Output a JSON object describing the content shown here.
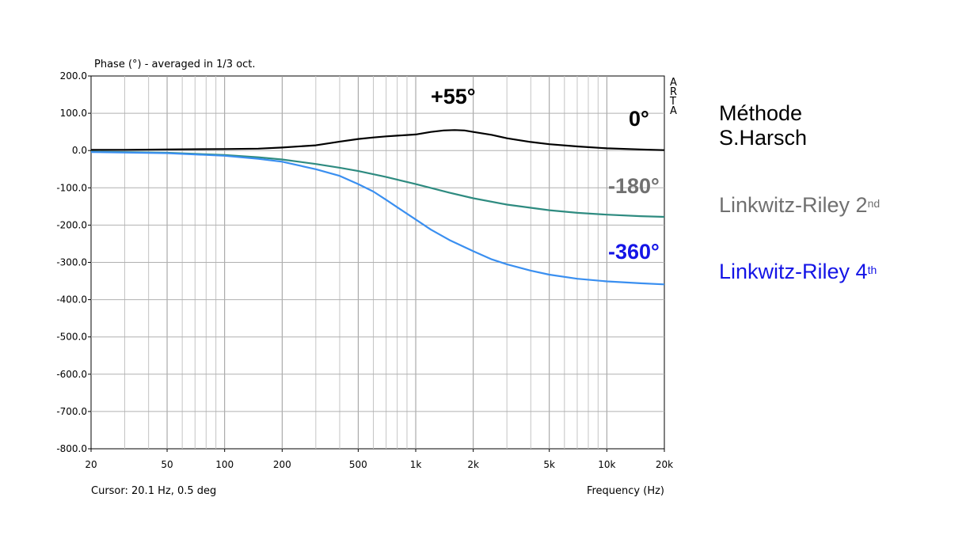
{
  "chart_data": {
    "type": "line",
    "title": "Phase (°) - averaged in 1/3 oct.",
    "xlabel": "Frequency (Hz)",
    "ylabel": "",
    "x_scale": "log",
    "xlim": [
      20,
      20000
    ],
    "ylim": [
      -800,
      200
    ],
    "grid": true,
    "y_ticks": [
      "200.0",
      "100.0",
      "0.0",
      "-100.0",
      "-200.0",
      "-300.0",
      "-400.0",
      "-500.0",
      "-600.0",
      "-700.0",
      "-800.0"
    ],
    "x_ticks": [
      {
        "v": 20,
        "label": "20"
      },
      {
        "v": 50,
        "label": "50"
      },
      {
        "v": 100,
        "label": "100"
      },
      {
        "v": 200,
        "label": "200"
      },
      {
        "v": 500,
        "label": "500"
      },
      {
        "v": 1000,
        "label": "1k"
      },
      {
        "v": 2000,
        "label": "2k"
      },
      {
        "v": 5000,
        "label": "5k"
      },
      {
        "v": 10000,
        "label": "10k"
      },
      {
        "v": 20000,
        "label": "20k"
      }
    ],
    "watermark": "ARTA",
    "cursor_text": "Cursor: 20.1 Hz, 0.5 deg",
    "series": [
      {
        "name": "Méthode S.Harsch",
        "color": "#000000",
        "x": [
          20,
          30,
          50,
          100,
          150,
          200,
          300,
          400,
          500,
          600,
          700,
          800,
          1000,
          1200,
          1400,
          1600,
          1800,
          2000,
          2500,
          3000,
          4000,
          5000,
          7000,
          10000,
          15000,
          20000
        ],
        "y": [
          2,
          2,
          3,
          4,
          5,
          8,
          14,
          24,
          31,
          35,
          38,
          40,
          43,
          50,
          54,
          55,
          54,
          50,
          42,
          33,
          23,
          17,
          11,
          6,
          3,
          1
        ]
      },
      {
        "name": "Linkwitz-Riley 2nd",
        "color": "#2e8b80",
        "x": [
          20,
          50,
          100,
          150,
          200,
          300,
          400,
          500,
          700,
          1000,
          1500,
          2000,
          3000,
          5000,
          7000,
          10000,
          15000,
          20000
        ],
        "y": [
          -3,
          -6,
          -12,
          -18,
          -24,
          -36,
          -46,
          -55,
          -71,
          -90,
          -113,
          -128,
          -145,
          -160,
          -167,
          -172,
          -176,
          -178
        ]
      },
      {
        "name": "Linkwitz-Riley 4th",
        "color": "#3a8ff0",
        "x": [
          20,
          50,
          100,
          150,
          200,
          300,
          400,
          500,
          600,
          700,
          800,
          1000,
          1200,
          1500,
          2000,
          2500,
          3000,
          4000,
          5000,
          7000,
          10000,
          15000,
          20000
        ],
        "y": [
          -4,
          -7,
          -14,
          -22,
          -30,
          -50,
          -68,
          -90,
          -110,
          -132,
          -152,
          -185,
          -212,
          -240,
          -270,
          -292,
          -305,
          -322,
          -333,
          -344,
          -351,
          -356,
          -359
        ]
      }
    ],
    "annotations": [
      {
        "text": "+55°",
        "color": "#000000"
      },
      {
        "text": "0°",
        "color": "#000000"
      },
      {
        "text": "-180°",
        "color": "#707070"
      },
      {
        "text": "-360°",
        "color": "#1414e6"
      }
    ]
  },
  "legend": {
    "harsch_line1": "Méthode",
    "harsch_line2": "S.Harsch",
    "lr2_text": "Linkwitz-Riley 2",
    "lr2_sup": "nd",
    "lr4_text": "Linkwitz-Riley 4",
    "lr4_sup": "th",
    "colors": {
      "harsch": "#000000",
      "lr2": "#707070",
      "lr4": "#1414e6"
    }
  }
}
